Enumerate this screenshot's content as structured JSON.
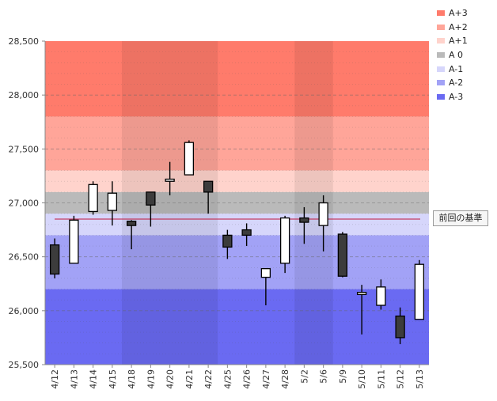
{
  "chart_data": {
    "type": "candlestick",
    "ylim": [
      25500,
      28500
    ],
    "y_ticks": [
      "28,500",
      "28,000",
      "27,500",
      "27,000",
      "26,500",
      "26,000",
      "25,500"
    ],
    "y_tick_values": [
      28500,
      28000,
      27500,
      27000,
      26500,
      26000,
      25500
    ],
    "categories": [
      "4/12",
      "4/13",
      "4/14",
      "4/15",
      "4/18",
      "4/19",
      "4/20",
      "4/21",
      "4/22",
      "4/25",
      "4/26",
      "4/27",
      "4/28",
      "5/2",
      "5/6",
      "5/9",
      "5/10",
      "5/11",
      "5/12",
      "5/13"
    ],
    "candles": [
      {
        "date": "4/12",
        "open": 26610,
        "high": 26670,
        "low": 26300,
        "close": 26340
      },
      {
        "date": "4/13",
        "open": 26440,
        "high": 26880,
        "low": 26440,
        "close": 26840
      },
      {
        "date": "4/14",
        "open": 26920,
        "high": 27200,
        "low": 26890,
        "close": 27170
      },
      {
        "date": "4/15",
        "open": 26930,
        "high": 27200,
        "low": 26790,
        "close": 27090
      },
      {
        "date": "4/18",
        "open": 26830,
        "high": 26840,
        "low": 26570,
        "close": 26790
      },
      {
        "date": "4/19",
        "open": 27100,
        "high": 27100,
        "low": 26780,
        "close": 26980
      },
      {
        "date": "4/20",
        "open": 27200,
        "high": 27380,
        "low": 27070,
        "close": 27220
      },
      {
        "date": "4/21",
        "open": 27260,
        "high": 27580,
        "low": 27260,
        "close": 27560
      },
      {
        "date": "4/22",
        "open": 27200,
        "high": 27200,
        "low": 26900,
        "close": 27100
      },
      {
        "date": "4/25",
        "open": 26700,
        "high": 26750,
        "low": 26480,
        "close": 26590
      },
      {
        "date": "4/26",
        "open": 26750,
        "high": 26810,
        "low": 26600,
        "close": 26700
      },
      {
        "date": "4/27",
        "open": 26310,
        "high": 26390,
        "low": 26050,
        "close": 26390
      },
      {
        "date": "4/28",
        "open": 26440,
        "high": 26880,
        "low": 26350,
        "close": 26860
      },
      {
        "date": "5/2",
        "open": 26860,
        "high": 26960,
        "low": 26620,
        "close": 26820
      },
      {
        "date": "5/6",
        "open": 26790,
        "high": 27070,
        "low": 26550,
        "close": 27000
      },
      {
        "date": "5/9",
        "open": 26710,
        "high": 26730,
        "low": 26310,
        "close": 26320
      },
      {
        "date": "5/10",
        "open": 26150,
        "high": 26240,
        "low": 25780,
        "close": 26170
      },
      {
        "date": "5/11",
        "open": 26050,
        "high": 26290,
        "low": 26010,
        "close": 26220
      },
      {
        "date": "5/12",
        "open": 25950,
        "high": 26030,
        "low": 25690,
        "close": 25750
      },
      {
        "date": "5/13",
        "open": 25920,
        "high": 26470,
        "low": 25920,
        "close": 26430
      }
    ],
    "reference_line": {
      "value": 26850,
      "label": "前回の基準",
      "color": "#c0183c"
    },
    "bands": [
      {
        "name": "A+3",
        "from": 27800,
        "to": 28500,
        "color": "#ff7b6b"
      },
      {
        "name": "A+2",
        "from": 27300,
        "to": 27800,
        "color": "#ffa599"
      },
      {
        "name": "A+1",
        "from": 27100,
        "to": 27300,
        "color": "#ffd3cc"
      },
      {
        "name": "A 0",
        "from": 26900,
        "to": 27100,
        "color": "#bababa"
      },
      {
        "name": "A-1",
        "from": 26700,
        "to": 26900,
        "color": "#d6d6fb"
      },
      {
        "name": "A-2",
        "from": 26200,
        "to": 26700,
        "color": "#a2a2f6"
      },
      {
        "name": "A-3",
        "from": 25500,
        "to": 26200,
        "color": "#6a6af2"
      }
    ],
    "shaded_columns": [
      [
        "4/18",
        "4/22"
      ],
      [
        "5/2",
        "5/6"
      ]
    ],
    "grid": true,
    "legend_position": "right"
  }
}
